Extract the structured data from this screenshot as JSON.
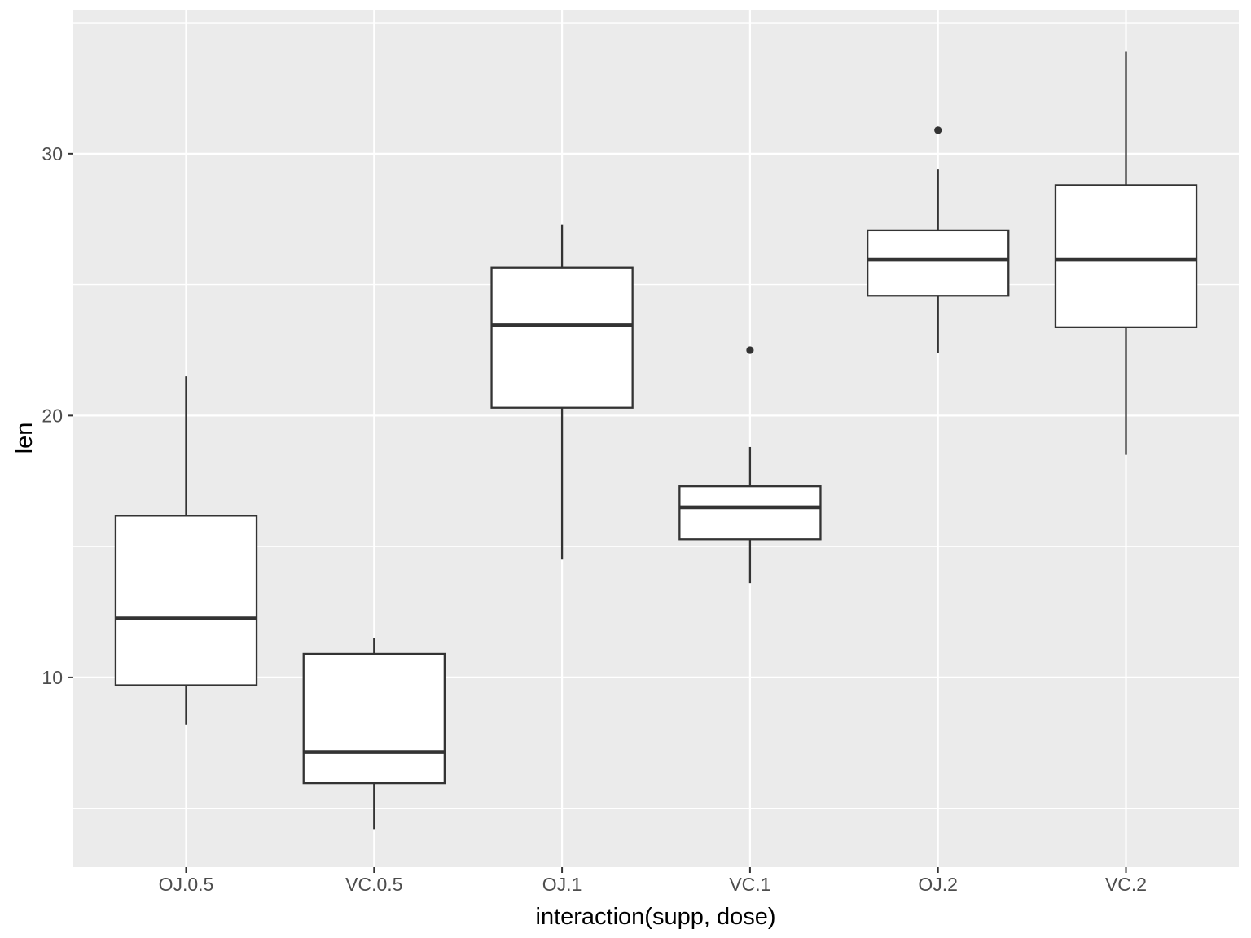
{
  "chart_data": {
    "type": "boxplot",
    "title": "",
    "xlabel": "interaction(supp, dose)",
    "ylabel": "len",
    "categories": [
      "OJ.0.5",
      "VC.0.5",
      "OJ.1",
      "VC.1",
      "OJ.2",
      "VC.2"
    ],
    "series": [
      {
        "category": "OJ.0.5",
        "lower_whisker": 8.2,
        "q1": 9.7,
        "median": 12.25,
        "q3": 16.175,
        "upper_whisker": 21.5,
        "outliers": []
      },
      {
        "category": "VC.0.5",
        "lower_whisker": 4.2,
        "q1": 5.95,
        "median": 7.15,
        "q3": 10.9,
        "upper_whisker": 11.5,
        "outliers": []
      },
      {
        "category": "OJ.1",
        "lower_whisker": 14.5,
        "q1": 20.3,
        "median": 23.45,
        "q3": 25.65,
        "upper_whisker": 27.3,
        "outliers": []
      },
      {
        "category": "VC.1",
        "lower_whisker": 13.6,
        "q1": 15.275,
        "median": 16.5,
        "q3": 17.3,
        "upper_whisker": 18.8,
        "outliers": [
          22.5
        ]
      },
      {
        "category": "OJ.2",
        "lower_whisker": 22.4,
        "q1": 24.575,
        "median": 25.95,
        "q3": 27.075,
        "upper_whisker": 29.4,
        "outliers": [
          30.9
        ]
      },
      {
        "category": "VC.2",
        "lower_whisker": 18.5,
        "q1": 23.375,
        "median": 25.95,
        "q3": 28.8,
        "upper_whisker": 33.9,
        "outliers": []
      }
    ],
    "y_axis": {
      "tick_labels": [
        "10",
        "20",
        "30"
      ],
      "major_ticks": [
        10,
        20,
        30
      ],
      "minor_ticks": [
        5,
        15,
        25,
        35
      ],
      "ylim": [
        2.75,
        35.5
      ]
    },
    "layout_hints": {
      "grid": true,
      "legend": "none",
      "vertical_gridline_per_category": true
    },
    "colors": {
      "panel_background": "#EBEBEB",
      "gridline": "#FFFFFF",
      "box_stroke": "#333333",
      "box_fill": "#FFFFFF",
      "median": "#333333",
      "whisker": "#333333",
      "outlier": "#333333",
      "tick_mark": "#333333",
      "tick_label": "#4D4D4D",
      "axis_title": "#000000",
      "figure_background": "#FFFFFF"
    }
  }
}
